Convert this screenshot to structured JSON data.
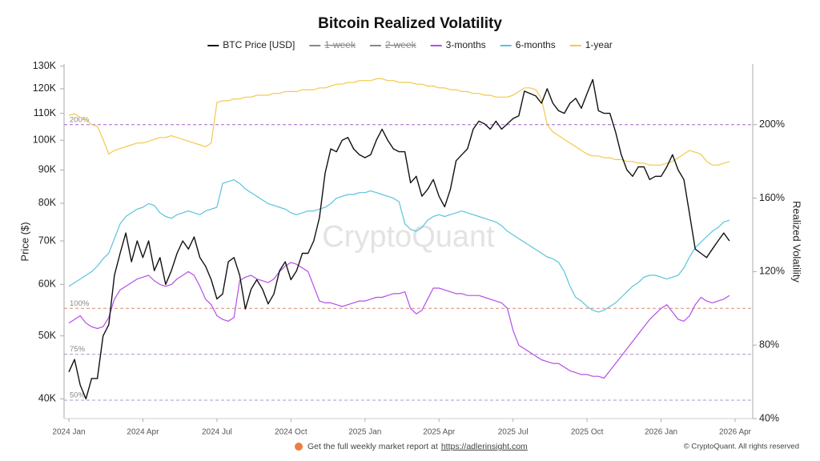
{
  "chart_data": {
    "type": "line",
    "title": "Bitcoin Realized Volatility",
    "y_label": "Price ($)",
    "y2_label": "Realized Volatility",
    "watermark": "CryptoQuant",
    "footer": {
      "text": "Get the full weekly market report at",
      "link": "https://adlerinsight.com",
      "copyright": "© CryptoQuant. All rights reserved"
    },
    "log_y": true,
    "ylim": [
      37300,
      131000
    ],
    "yticks": [
      {
        "value": 40000,
        "label": "40K"
      },
      {
        "value": 50000,
        "label": "50K"
      },
      {
        "value": 60000,
        "label": "60K"
      },
      {
        "value": 70000,
        "label": "70K"
      },
      {
        "value": 80000,
        "label": "80K"
      },
      {
        "value": 90000,
        "label": "90K"
      },
      {
        "value": 100000,
        "label": "100K"
      },
      {
        "value": 110000,
        "label": "110K"
      },
      {
        "value": 120000,
        "label": "120K"
      },
      {
        "value": 130000,
        "label": "130K"
      }
    ],
    "y2lim": [
      40,
      233
    ],
    "y2ticks": [
      {
        "value": 40,
        "label": "40%"
      },
      {
        "value": 80,
        "label": "80%"
      },
      {
        "value": 120,
        "label": "120%"
      },
      {
        "value": 160,
        "label": "160%"
      },
      {
        "value": 200,
        "label": "200%"
      }
    ],
    "reference_lines": [
      {
        "value": 200,
        "label": "200%",
        "color": "#a760c9"
      },
      {
        "value": 100,
        "label": "100%",
        "color": "#d98a73"
      },
      {
        "value": 75,
        "label": "75%",
        "color": "#ae95c4"
      },
      {
        "value": 50,
        "label": "50%",
        "color": "#ae95c4"
      }
    ],
    "categories": [
      "2024 Jan",
      null,
      null,
      null,
      null,
      null,
      null,
      null,
      null,
      null,
      null,
      null,
      null,
      "2024 Apr",
      null,
      null,
      null,
      null,
      null,
      null,
      null,
      null,
      null,
      null,
      null,
      null,
      "2024 Jul",
      null,
      null,
      null,
      null,
      null,
      null,
      null,
      null,
      null,
      null,
      null,
      null,
      "2024 Oct",
      null,
      null,
      null,
      null,
      null,
      null,
      null,
      null,
      null,
      null,
      null,
      null,
      "2025 Jan",
      null,
      null,
      null,
      null,
      null,
      null,
      null,
      null,
      null,
      null,
      null,
      null,
      "2025 Apr",
      null,
      null,
      null,
      null,
      null,
      null,
      null,
      null,
      null,
      null,
      null,
      null,
      "2025 Jul",
      null,
      null,
      null,
      null,
      null,
      null,
      null,
      null,
      null,
      null,
      null,
      null,
      "2025 Oct",
      null,
      null,
      null,
      null,
      null,
      null,
      null,
      null,
      null,
      null,
      null,
      null,
      "2026 Jan",
      null,
      null,
      null,
      null,
      null,
      null,
      null,
      null,
      null,
      null,
      null,
      null,
      "2026 Apr"
    ],
    "series": [
      {
        "name": "BTC Price [USD]",
        "color": "#111111",
        "axis": "y",
        "values": [
          44000,
          46000,
          42000,
          40000,
          43000,
          43000,
          50000,
          52000,
          62000,
          67000,
          72000,
          65000,
          70000,
          66000,
          70000,
          63000,
          66000,
          60000,
          63000,
          67000,
          70000,
          68000,
          71000,
          66000,
          64000,
          61000,
          57000,
          58000,
          65000,
          66000,
          62000,
          55000,
          59000,
          61000,
          59000,
          56000,
          58000,
          63000,
          65000,
          61000,
          63000,
          67000,
          67000,
          70000,
          76000,
          89000,
          97000,
          96000,
          100000,
          101000,
          97000,
          95000,
          94000,
          95000,
          100000,
          104000,
          100000,
          97000,
          96000,
          96000,
          86000,
          88000,
          82000,
          84000,
          87000,
          82000,
          79000,
          84000,
          93000,
          95000,
          97000,
          104000,
          107000,
          106000,
          104000,
          107000,
          104000,
          106000,
          108000,
          109000,
          119000,
          118000,
          117000,
          114000,
          120000,
          114000,
          111000,
          110000,
          114000,
          116000,
          112000,
          118000,
          124000,
          111000,
          110000,
          110000,
          103000,
          95000,
          90000,
          88000,
          91000,
          91000,
          87000,
          88000,
          88000,
          91000,
          95000,
          90000,
          87000,
          77000,
          68000,
          67000,
          66000,
          68000,
          70000,
          72000,
          70000,
          null
        ]
      },
      {
        "name": "1-week",
        "color": "#888888",
        "hidden": true
      },
      {
        "name": "2-week",
        "color": "#888888",
        "hidden": true
      },
      {
        "name": "3-months",
        "color": "#b44ee6",
        "axis": "y2",
        "values": [
          92,
          94,
          96,
          92,
          90,
          89,
          90,
          95,
          105,
          110,
          112,
          114,
          116,
          117,
          118,
          115,
          113,
          112,
          113,
          116,
          118,
          120,
          118,
          112,
          105,
          102,
          96,
          94,
          93,
          95,
          115,
          117,
          118,
          116,
          115,
          114,
          116,
          120,
          123,
          125,
          124,
          122,
          120,
          112,
          104,
          103,
          103,
          102,
          101,
          102,
          103,
          104,
          104,
          105,
          106,
          106,
          107,
          108,
          108,
          109,
          100,
          97,
          99,
          105,
          111,
          111,
          110,
          109,
          108,
          108,
          107,
          107,
          107,
          106,
          105,
          104,
          103,
          100,
          88,
          80,
          78,
          76,
          74,
          72,
          71,
          70,
          70,
          68,
          66,
          65,
          64,
          64,
          63,
          63,
          62,
          66,
          70,
          74,
          78,
          82,
          86,
          90,
          94,
          97,
          100,
          102,
          98,
          94,
          93,
          96,
          102,
          106,
          104,
          103,
          104,
          105,
          107,
          null
        ]
      },
      {
        "name": "6-months",
        "color": "#5bc3dc",
        "axis": "y2",
        "values": [
          112,
          114,
          116,
          118,
          120,
          123,
          127,
          130,
          138,
          146,
          150,
          152,
          154,
          155,
          157,
          156,
          152,
          150,
          149,
          151,
          152,
          153,
          152,
          151,
          153,
          154,
          155,
          168,
          169,
          170,
          168,
          165,
          163,
          161,
          159,
          157,
          156,
          155,
          154,
          152,
          151,
          152,
          153,
          153,
          154,
          155,
          157,
          160,
          161,
          162,
          162,
          163,
          163,
          164,
          163,
          162,
          161,
          160,
          158,
          146,
          143,
          142,
          144,
          148,
          150,
          151,
          150,
          151,
          152,
          153,
          152,
          151,
          150,
          149,
          148,
          147,
          145,
          142,
          140,
          138,
          136,
          134,
          132,
          130,
          128,
          127,
          125,
          120,
          112,
          106,
          104,
          101,
          99,
          98,
          99,
          101,
          103,
          106,
          109,
          112,
          114,
          117,
          118,
          118,
          117,
          116,
          117,
          118,
          122,
          128,
          133,
          136,
          139,
          142,
          144,
          147,
          148,
          null
        ]
      },
      {
        "name": "1-year",
        "color": "#f2c94c",
        "axis": "y2",
        "values": [
          205,
          206,
          204,
          203,
          200,
          199,
          192,
          184,
          186,
          187,
          188,
          189,
          190,
          190,
          191,
          192,
          193,
          193,
          194,
          193,
          192,
          191,
          190,
          189,
          188,
          190,
          212,
          213,
          213,
          214,
          214,
          215,
          215,
          216,
          216,
          216,
          217,
          217,
          218,
          218,
          218,
          219,
          219,
          219,
          220,
          220,
          221,
          222,
          222,
          223,
          223,
          224,
          224,
          224,
          225,
          225,
          224,
          224,
          223,
          223,
          223,
          222,
          222,
          221,
          221,
          220,
          220,
          219,
          219,
          218,
          218,
          217,
          217,
          216,
          216,
          215,
          215,
          215,
          216,
          218,
          220,
          220,
          219,
          214,
          200,
          196,
          194,
          192,
          190,
          188,
          186,
          184,
          183,
          183,
          182,
          182,
          181,
          181,
          180,
          180,
          179,
          179,
          178,
          178,
          178,
          179,
          180,
          182,
          184,
          186,
          185,
          184,
          180,
          178,
          178,
          179,
          180,
          null
        ]
      }
    ]
  }
}
